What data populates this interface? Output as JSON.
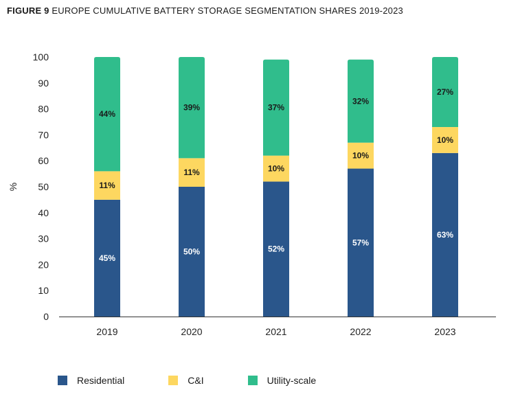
{
  "title": {
    "figure_label": "FIGURE 9",
    "text": "EUROPE CUMULATIVE BATTERY STORAGE SEGMENTATION SHARES 2019-2023"
  },
  "chart_data": {
    "type": "bar",
    "stacked": true,
    "categories": [
      "2019",
      "2020",
      "2021",
      "2022",
      "2023"
    ],
    "series": [
      {
        "name": "Residential",
        "color": "#2a568b",
        "label_color": "#ffffff",
        "values": [
          45,
          50,
          52,
          57,
          63
        ],
        "labels": [
          "45%",
          "50%",
          "52%",
          "57%",
          "63%"
        ]
      },
      {
        "name": "C&I",
        "color": "#fdd760",
        "label_color": "#1a1a1a",
        "values": [
          11,
          11,
          10,
          10,
          10
        ],
        "labels": [
          "11%",
          "11%",
          "10%",
          "10%",
          "10%"
        ]
      },
      {
        "name": "Utility-scale",
        "color": "#30bd8c",
        "label_color": "#1a1a1a",
        "values": [
          44,
          39,
          37,
          32,
          27
        ],
        "labels": [
          "44%",
          "39%",
          "37%",
          "32%",
          "27%"
        ]
      }
    ],
    "ylabel": "%",
    "xlabel": "",
    "ylim": [
      0,
      100
    ],
    "yticks": [
      "0",
      "10",
      "20",
      "30",
      "40",
      "50",
      "60",
      "70",
      "80",
      "90",
      "100"
    ],
    "grid": false,
    "legend_position": "bottom-left"
  }
}
